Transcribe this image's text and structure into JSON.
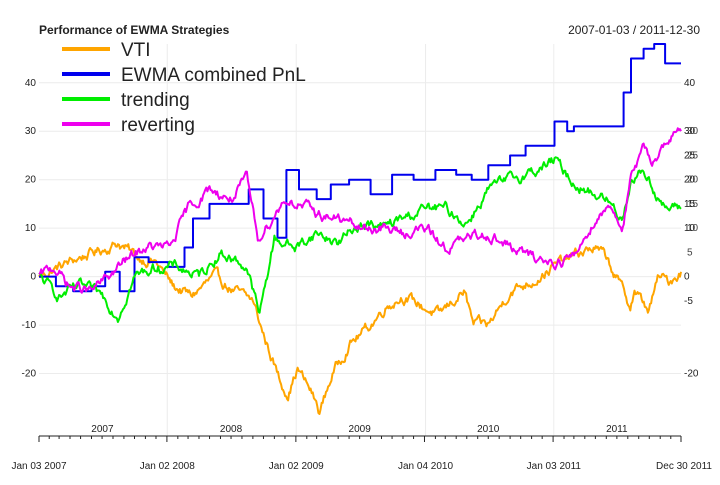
{
  "chart_data": {
    "type": "line",
    "title": "Performance of EWMA Strategies",
    "date_range": "2007-01-03 / 2011-12-30",
    "xlabel": "",
    "ylabel": "",
    "ylim": [
      -30,
      48
    ],
    "y_ticks": [
      -20,
      -10,
      0,
      10,
      20,
      30,
      40
    ],
    "y_tick_labels": [
      "-20",
      "-10",
      "0",
      "10",
      "20",
      "30",
      "40"
    ],
    "y_tick_labels_right": [
      "-20",
      "-5",
      "0",
      "10",
      "15",
      "20",
      "25",
      "30",
      "40"
    ],
    "y_ticks_right": [
      -20,
      -5,
      0,
      10,
      15,
      20,
      25,
      30,
      40
    ],
    "y_ticks_right_overlap": [
      5,
      10,
      15,
      20,
      25,
      30
    ],
    "xlim": [
      "2007-01-03",
      "2011-12-30"
    ],
    "year_labels": [
      {
        "label": "2007",
        "date": "2007-07-02"
      },
      {
        "label": "2008",
        "date": "2008-07-01"
      },
      {
        "label": "2009",
        "date": "2009-07-01"
      },
      {
        "label": "2010",
        "date": "2010-07-01"
      },
      {
        "label": "2011",
        "date": "2011-07-01"
      }
    ],
    "x_date_labels": [
      {
        "label": "Jan 03 2007",
        "date": "2007-01-03"
      },
      {
        "label": "Jan 02 2008",
        "date": "2008-01-02"
      },
      {
        "label": "Jan 02 2009",
        "date": "2009-01-02"
      },
      {
        "label": "Jan 04 2010",
        "date": "2010-01-04"
      },
      {
        "label": "Jan 03 2011",
        "date": "2011-01-03"
      },
      {
        "label": "Dec 30 2011",
        "date": "2011-12-30"
      }
    ],
    "grid": true,
    "legend_position": "top-left",
    "series": [
      {
        "name": "VTI",
        "color": "#FFA500",
        "step": false,
        "x": [
          "2007-01-03",
          "2007-03-01",
          "2007-05-01",
          "2007-07-15",
          "2007-08-15",
          "2007-10-10",
          "2007-12-01",
          "2008-01-20",
          "2008-03-10",
          "2008-05-15",
          "2008-07-10",
          "2008-09-01",
          "2008-10-01",
          "2008-11-20",
          "2008-12-10",
          "2009-01-06",
          "2009-02-15",
          "2009-03-09",
          "2009-04-15",
          "2009-06-01",
          "2009-08-01",
          "2009-09-15",
          "2009-11-01",
          "2010-01-15",
          "2010-02-10",
          "2010-04-23",
          "2010-05-20",
          "2010-07-02",
          "2010-09-01",
          "2010-11-01",
          "2011-01-01",
          "2011-02-18",
          "2011-04-29",
          "2011-06-01",
          "2011-08-08",
          "2011-08-20",
          "2011-09-30",
          "2011-10-28",
          "2011-11-25",
          "2011-12-30"
        ],
        "y": [
          0,
          2,
          4,
          6,
          7,
          4,
          3,
          -2,
          -4,
          0,
          -3,
          -5,
          -12,
          -22,
          -24,
          -19,
          -24,
          -28,
          -20,
          -14,
          -10,
          -6,
          -4,
          -7,
          -8,
          -3,
          -10,
          -10,
          -3,
          -1,
          2,
          4,
          6,
          4,
          -6,
          -3,
          -7,
          0,
          -1,
          1
        ]
      },
      {
        "name": "EWMA combined PnL",
        "color": "#0000EE",
        "step": true,
        "x": [
          "2007-01-03",
          "2007-02-20",
          "2007-04-10",
          "2007-06-01",
          "2007-07-10",
          "2007-08-20",
          "2007-10-01",
          "2007-11-10",
          "2008-01-05",
          "2008-02-20",
          "2008-03-15",
          "2008-05-01",
          "2008-07-01",
          "2008-08-20",
          "2008-10-01",
          "2008-11-10",
          "2008-12-05",
          "2009-01-10",
          "2009-03-01",
          "2009-04-10",
          "2009-06-01",
          "2009-08-01",
          "2009-10-01",
          "2009-12-01",
          "2010-02-01",
          "2010-04-01",
          "2010-05-15",
          "2010-07-01",
          "2010-09-01",
          "2010-10-15",
          "2011-01-05",
          "2011-02-10",
          "2011-03-01",
          "2011-05-15",
          "2011-06-20",
          "2011-07-20",
          "2011-08-10",
          "2011-09-15",
          "2011-10-15",
          "2011-11-15",
          "2011-12-30"
        ],
        "y": [
          0,
          -2,
          -3,
          -2,
          1,
          -3,
          4,
          3,
          2,
          6,
          12,
          15,
          15,
          18,
          12,
          8,
          22,
          18,
          16,
          19,
          20,
          17,
          21,
          20,
          22,
          21,
          20,
          23,
          25,
          27,
          32,
          30,
          31,
          31,
          31,
          38,
          45,
          47,
          48,
          44,
          44
        ]
      },
      {
        "name": "trending",
        "color": "#00EE00",
        "step": false,
        "x": [
          "2007-01-03",
          "2007-03-01",
          "2007-05-01",
          "2007-07-01",
          "2007-08-15",
          "2007-10-01",
          "2007-12-01",
          "2008-02-01",
          "2008-04-01",
          "2008-06-01",
          "2008-08-15",
          "2008-09-20",
          "2008-11-01",
          "2009-01-01",
          "2009-03-01",
          "2009-05-01",
          "2009-07-01",
          "2009-09-01",
          "2009-11-01",
          "2010-01-01",
          "2010-03-01",
          "2010-05-01",
          "2010-07-01",
          "2010-09-01",
          "2010-11-15",
          "2011-01-05",
          "2011-02-20",
          "2011-04-01",
          "2011-06-01",
          "2011-07-15",
          "2011-08-10",
          "2011-09-15",
          "2011-10-15",
          "2011-11-15",
          "2011-12-30"
        ],
        "y": [
          0,
          -4,
          -2,
          -4,
          -8,
          0,
          2,
          2,
          0,
          5,
          2,
          -8,
          8,
          6,
          9,
          7,
          11,
          10,
          12,
          14,
          14,
          11,
          18,
          20,
          22,
          24,
          20,
          18,
          16,
          12,
          20,
          22,
          18,
          14,
          14
        ]
      },
      {
        "name": "reverting",
        "color": "#EE00EE",
        "step": false,
        "x": [
          "2007-01-03",
          "2007-02-15",
          "2007-04-01",
          "2007-06-01",
          "2007-07-20",
          "2007-09-01",
          "2007-11-01",
          "2008-01-10",
          "2008-03-01",
          "2008-05-01",
          "2008-07-01",
          "2008-08-15",
          "2008-09-15",
          "2008-10-25",
          "2008-12-01",
          "2009-01-10",
          "2009-03-01",
          "2009-05-01",
          "2009-07-01",
          "2009-09-01",
          "2009-11-01",
          "2010-01-01",
          "2010-03-01",
          "2010-05-15",
          "2010-07-01",
          "2010-09-01",
          "2010-11-01",
          "2011-01-01",
          "2011-03-01",
          "2011-05-01",
          "2011-06-15",
          "2011-07-15",
          "2011-08-10",
          "2011-09-15",
          "2011-10-15",
          "2011-11-15",
          "2011-12-30"
        ],
        "y": [
          0,
          2,
          -2,
          -3,
          0,
          3,
          6,
          6,
          14,
          18,
          16,
          20,
          8,
          12,
          16,
          15,
          13,
          12,
          10,
          10,
          9,
          10,
          6,
          8,
          9,
          6,
          4,
          3,
          4,
          12,
          15,
          10,
          20,
          26,
          24,
          28,
          30
        ]
      }
    ]
  }
}
